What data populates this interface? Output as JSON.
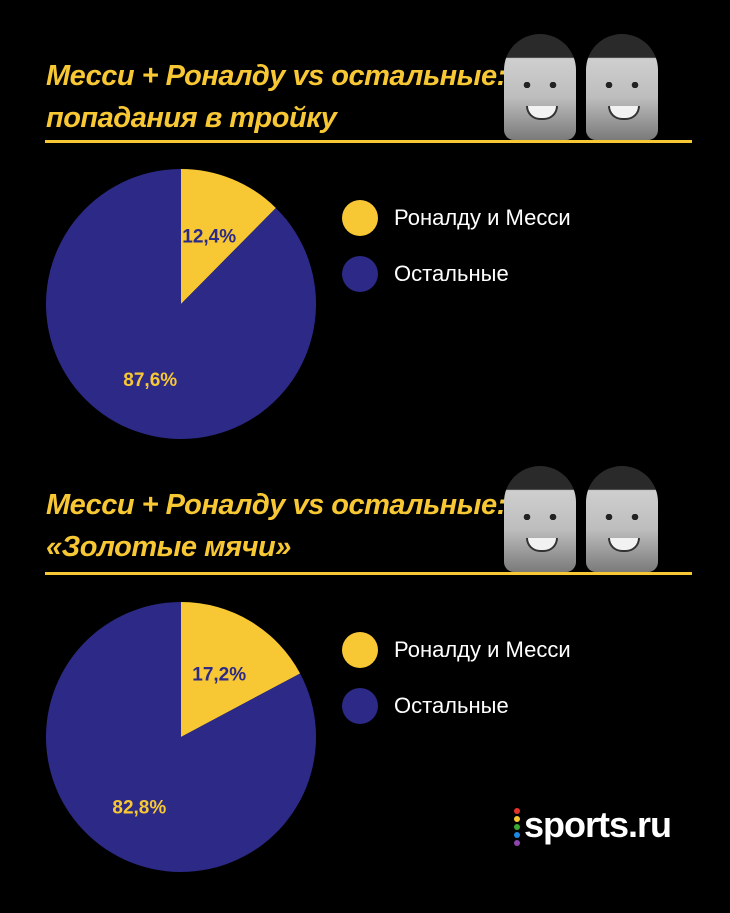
{
  "colors": {
    "yellow": "#f8c834",
    "blue": "#2c2a86",
    "background": "#000000"
  },
  "icons": [
    "ronaldo-photo",
    "messi-photo"
  ],
  "logo": {
    "text": "sports.ru",
    "dot_colors": [
      "#e6332a",
      "#f8c834",
      "#3aaa35",
      "#1e88e5",
      "#8e44ad"
    ]
  },
  "sections": [
    {
      "title_line1": "Месси + Роналду vs остальные:",
      "title_line2": "попадания в тройку",
      "legend": [
        "Роналду и Месси",
        "Остальные"
      ]
    },
    {
      "title_line1": "Месси + Роналду vs остальные:",
      "title_line2": "«Золотые мячи»",
      "legend": [
        "Роналду и Месси",
        "Остальные"
      ]
    }
  ],
  "chart_data": [
    {
      "type": "pie",
      "categories": [
        "Роналду и Месси",
        "Остальные"
      ],
      "values": [
        12.4,
        87.6
      ],
      "labels": [
        "12,4%",
        "87,6%"
      ],
      "colors": [
        "#f8c834",
        "#2c2a86"
      ],
      "title": "Месси + Роналду vs остальные: попадания в тройку",
      "legend_position": "right"
    },
    {
      "type": "pie",
      "categories": [
        "Роналду и Месси",
        "Остальные"
      ],
      "values": [
        17.2,
        82.8
      ],
      "labels": [
        "17,2%",
        "82,8%"
      ],
      "colors": [
        "#f8c834",
        "#2c2a86"
      ],
      "title": "Месси + Роналду vs остальные: «Золотые мячи»",
      "legend_position": "right"
    }
  ]
}
